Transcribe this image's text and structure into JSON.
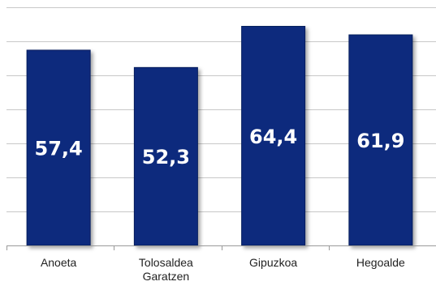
{
  "chart_data": {
    "type": "bar",
    "categories": [
      [
        "Anoeta"
      ],
      [
        "Tolosaldea",
        "Garatzen"
      ],
      [
        "Gipuzkoa"
      ],
      [
        "Hegoalde"
      ]
    ],
    "values": [
      57.4,
      52.3,
      64.4,
      61.9
    ],
    "data_labels": [
      "57,4",
      "52,3",
      "64,4",
      "61,9"
    ],
    "ylim": [
      0,
      70
    ],
    "gridlines": [
      10,
      20,
      30,
      40,
      50,
      60,
      70
    ],
    "grid": true,
    "legend": "none",
    "colors": {
      "bar": "#0d2a7d",
      "bar_edge": "#061a5c",
      "grid": "#c8c8c8",
      "axis": "#9a9a9a"
    }
  }
}
